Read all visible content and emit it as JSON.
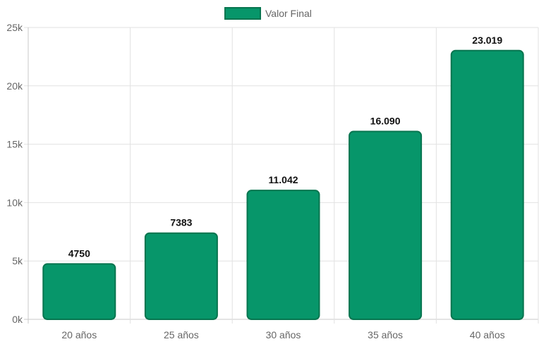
{
  "chart_data": {
    "type": "bar",
    "categories": [
      "20 años",
      "25 años",
      "30 años",
      "35 años",
      "40 años"
    ],
    "series": [
      {
        "name": "Valor Final",
        "values": [
          4750,
          7383,
          11042,
          16090,
          23019
        ],
        "data_labels": [
          "4750",
          "7383",
          "11.042",
          "16.090",
          "23.019"
        ]
      }
    ],
    "ylim": [
      0,
      25000
    ],
    "y_ticks": [
      0,
      5000,
      10000,
      15000,
      20000,
      25000
    ],
    "y_tick_labels": [
      "0k",
      "5k",
      "10k",
      "15k",
      "20k",
      "25k"
    ],
    "grid": true,
    "legend_position": "top",
    "colors": {
      "bar_fill": "#07966a",
      "bar_border": "#07754f",
      "grid": "#e2e2e2",
      "axis": "#c8c8c8"
    }
  }
}
